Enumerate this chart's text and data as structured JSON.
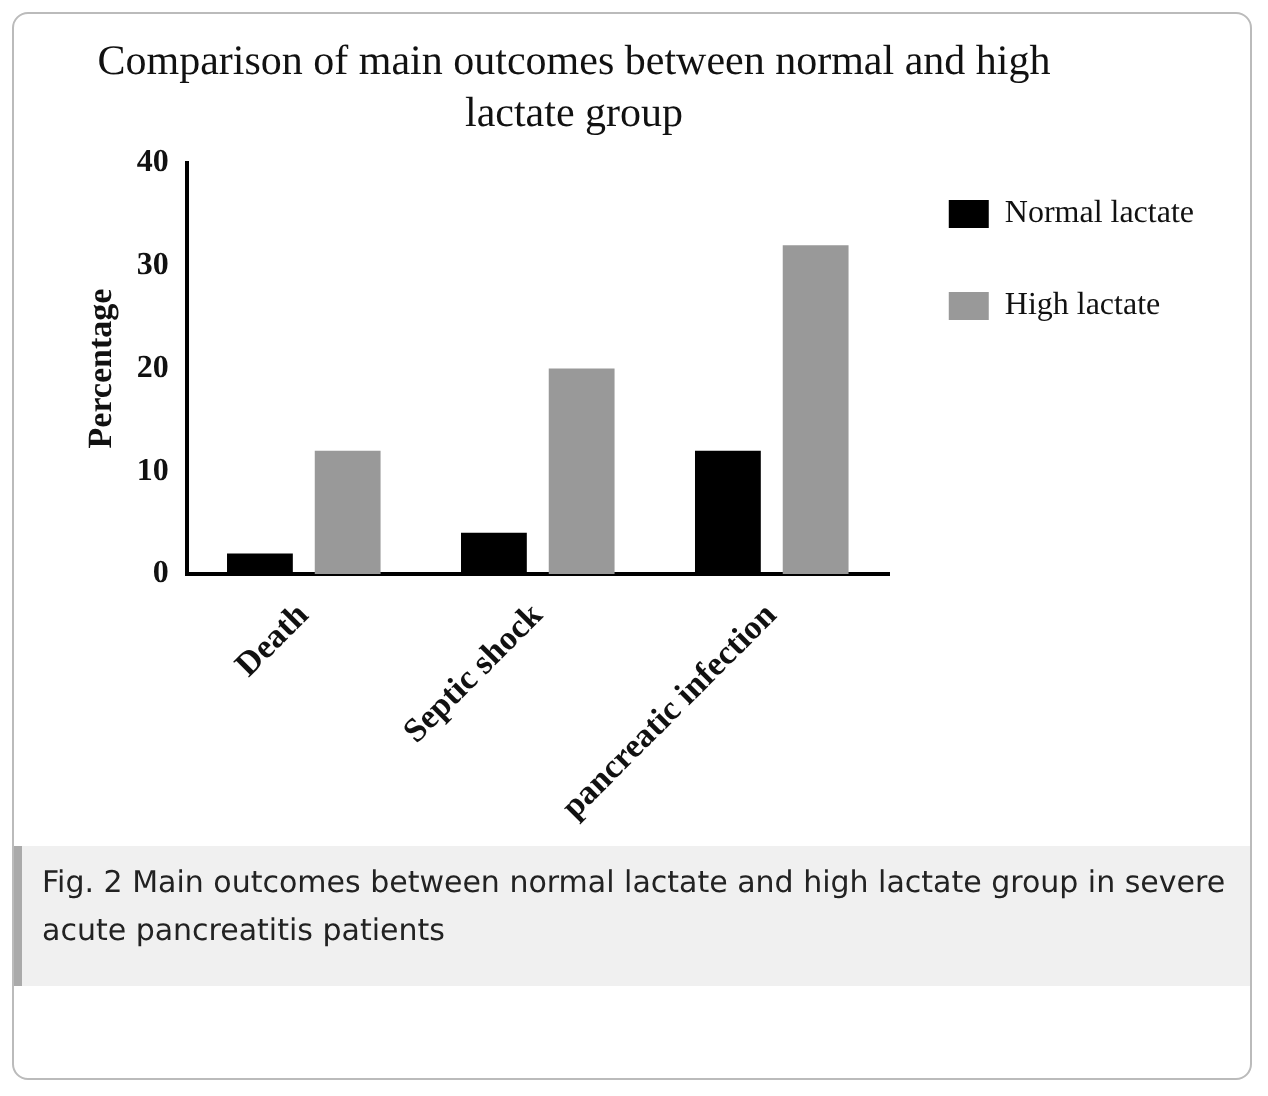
{
  "chart_data": {
    "type": "bar",
    "title": "Comparison of main outcomes between normal and high lactate group",
    "ylabel": "Percentage",
    "categories": [
      "Death",
      "Septic shock",
      "pancreatic infection"
    ],
    "series": [
      {
        "name": "Normal lactate",
        "color": "#000000",
        "values": [
          2,
          4,
          12
        ]
      },
      {
        "name": "High lactate",
        "color": "#999999",
        "values": [
          12,
          20,
          32
        ]
      }
    ],
    "ylim": [
      0,
      40
    ],
    "yticks": [
      0,
      10,
      20,
      30,
      40
    ],
    "grid": false,
    "legend": "top right",
    "annotations": [
      "Fig. 2 Main outcomes between normal lactate and high lactate group in severe acute pancreatitis patients"
    ]
  }
}
